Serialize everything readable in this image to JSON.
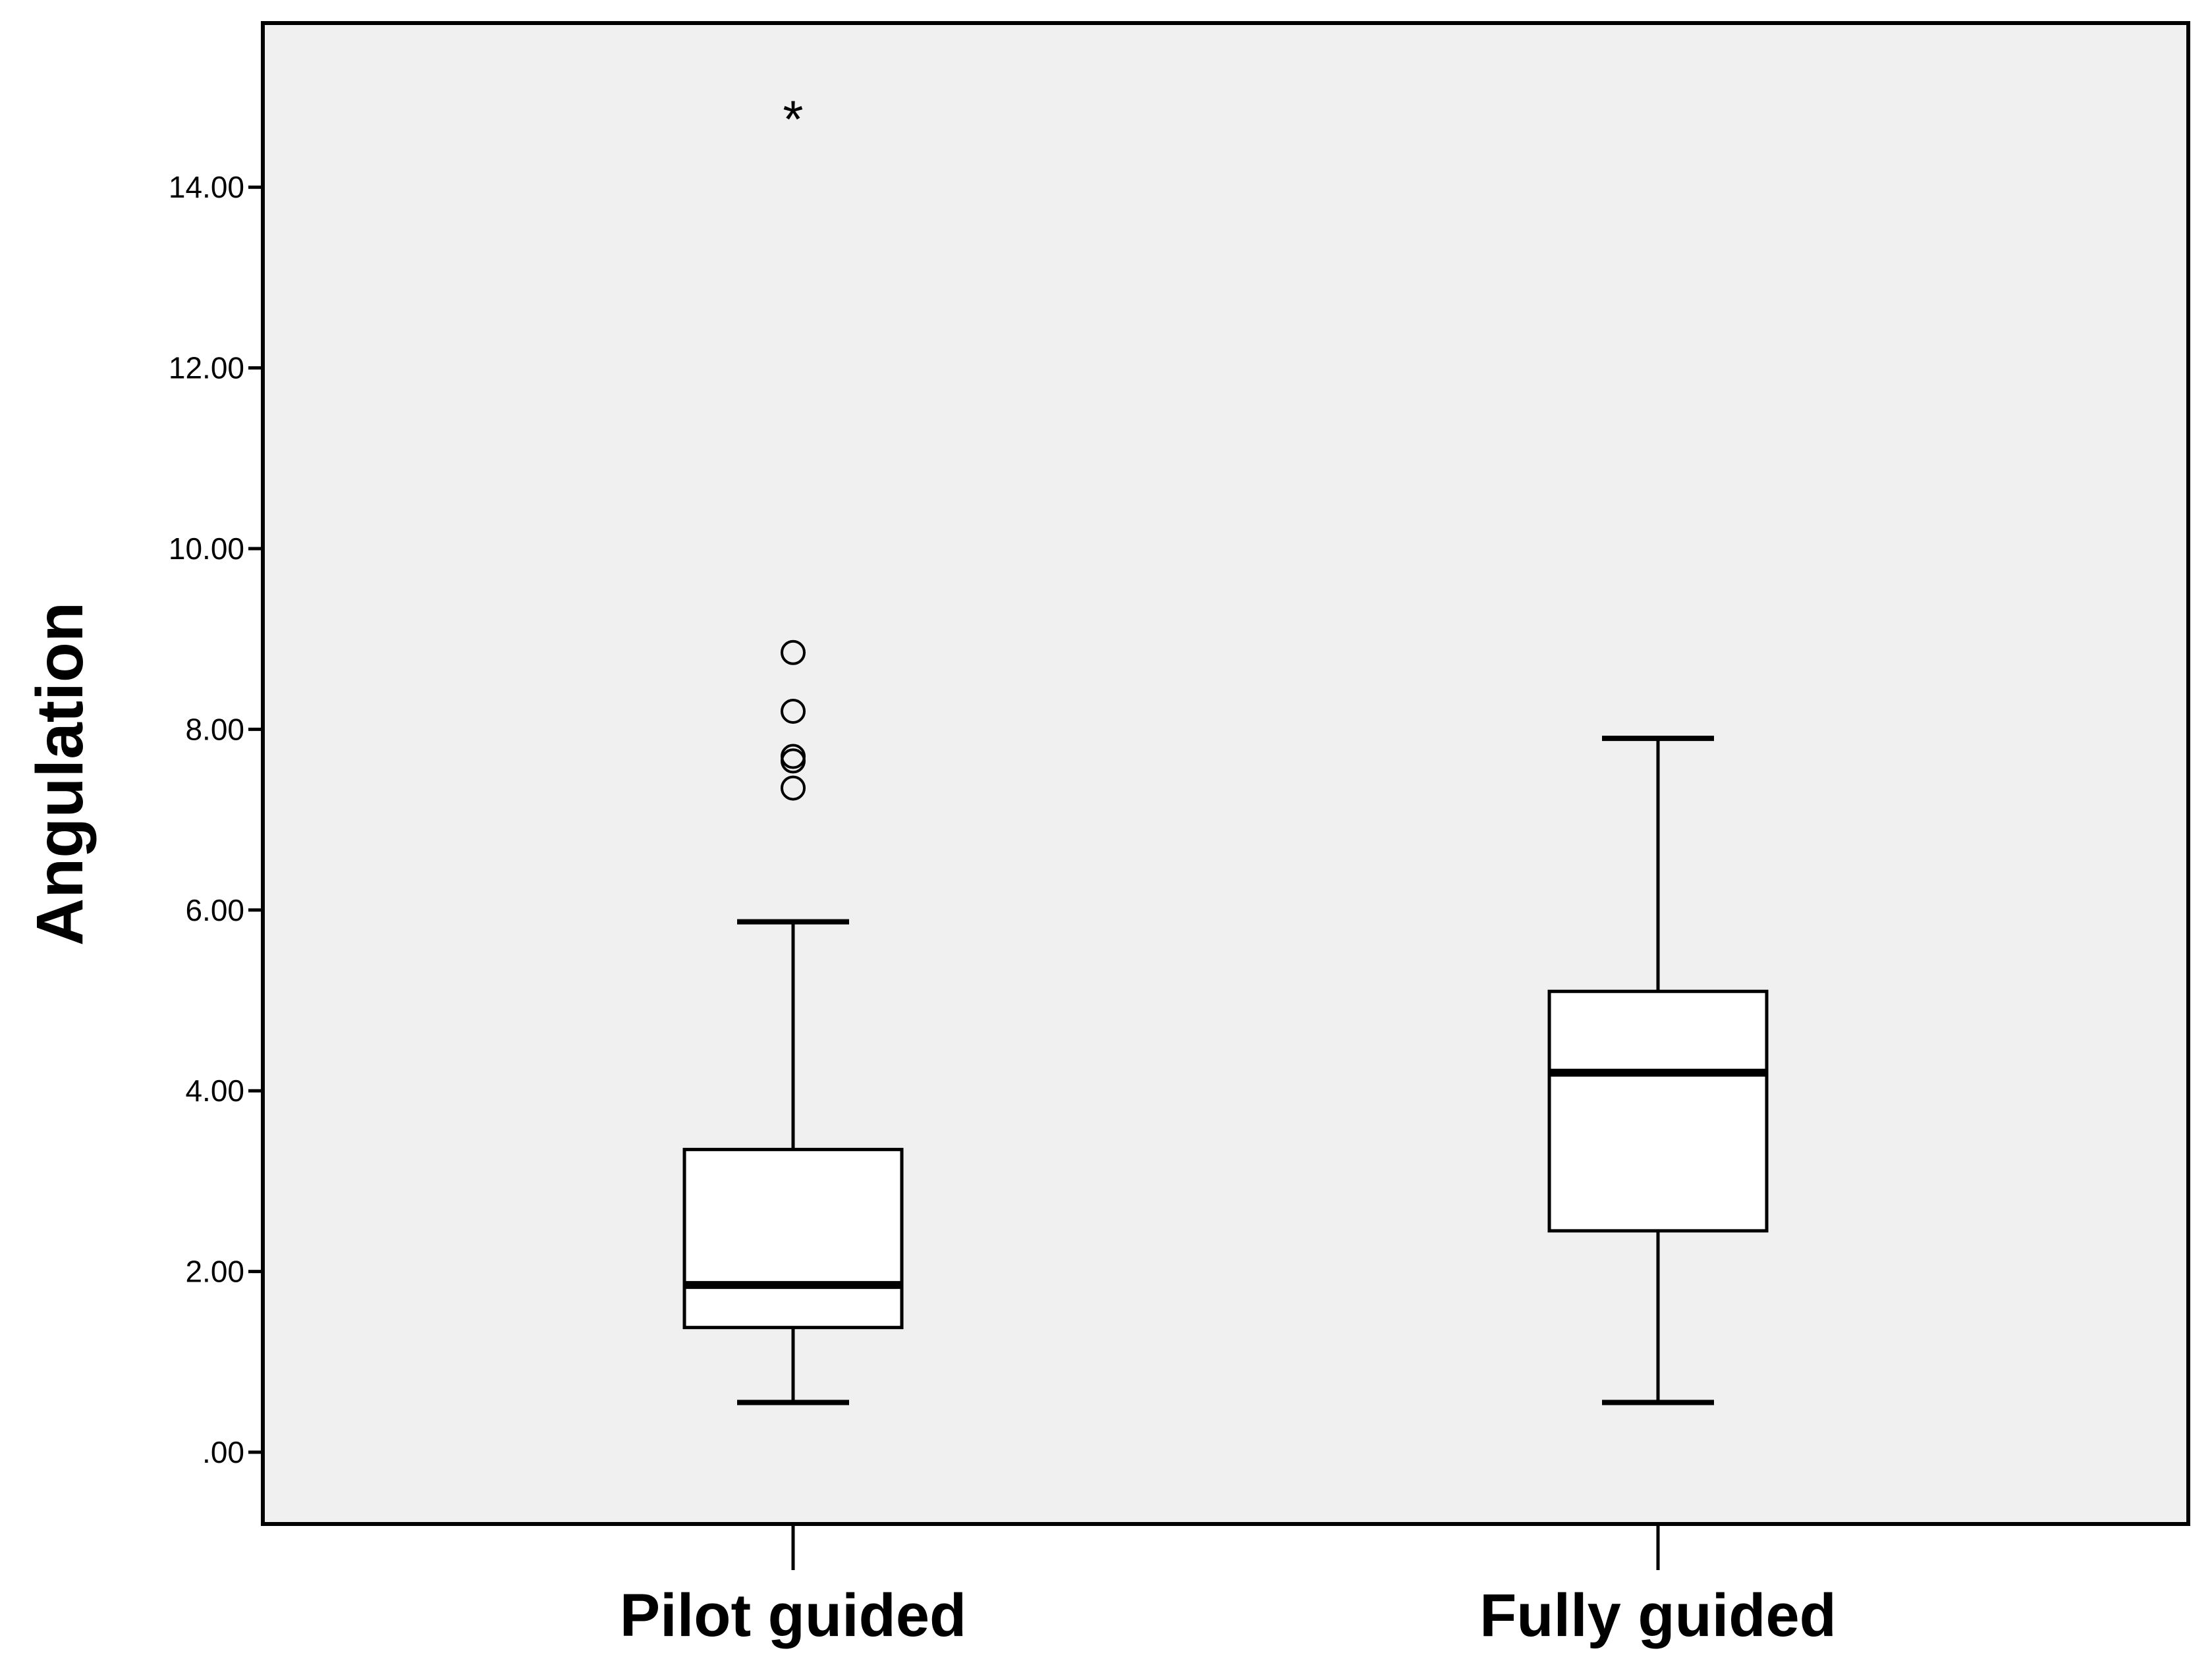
{
  "chart_data": {
    "type": "boxplot",
    "title": "",
    "xlabel": "",
    "ylabel": "Angulation",
    "ylim": [
      -0.5,
      16.0
    ],
    "yticks": [
      0,
      2,
      4,
      6,
      8,
      10,
      12,
      14
    ],
    "ytick_labels": [
      ".00",
      "2.00",
      "4.00",
      "6.00",
      "8.00",
      "10.00",
      "12.00",
      "14.00"
    ],
    "categories": [
      "Pilot guided",
      "Fully guided"
    ],
    "series": [
      {
        "category": "Pilot guided",
        "whisker_low": 0.55,
        "q1": 1.38,
        "median": 1.85,
        "q3": 3.35,
        "whisker_high": 5.87,
        "outliers": [
          7.35,
          7.65,
          7.7,
          8.2,
          8.85
        ],
        "extremes": [
          14.8
        ]
      },
      {
        "category": "Fully guided",
        "whisker_low": 0.55,
        "q1": 2.45,
        "median": 4.2,
        "q3": 5.1,
        "whisker_high": 7.9,
        "outliers": [],
        "extremes": []
      }
    ],
    "colors": {
      "plot_background": "#f0f0f0",
      "box_fill": "#ffffff",
      "stroke": "#000000"
    },
    "grid": false,
    "legend": "none"
  }
}
